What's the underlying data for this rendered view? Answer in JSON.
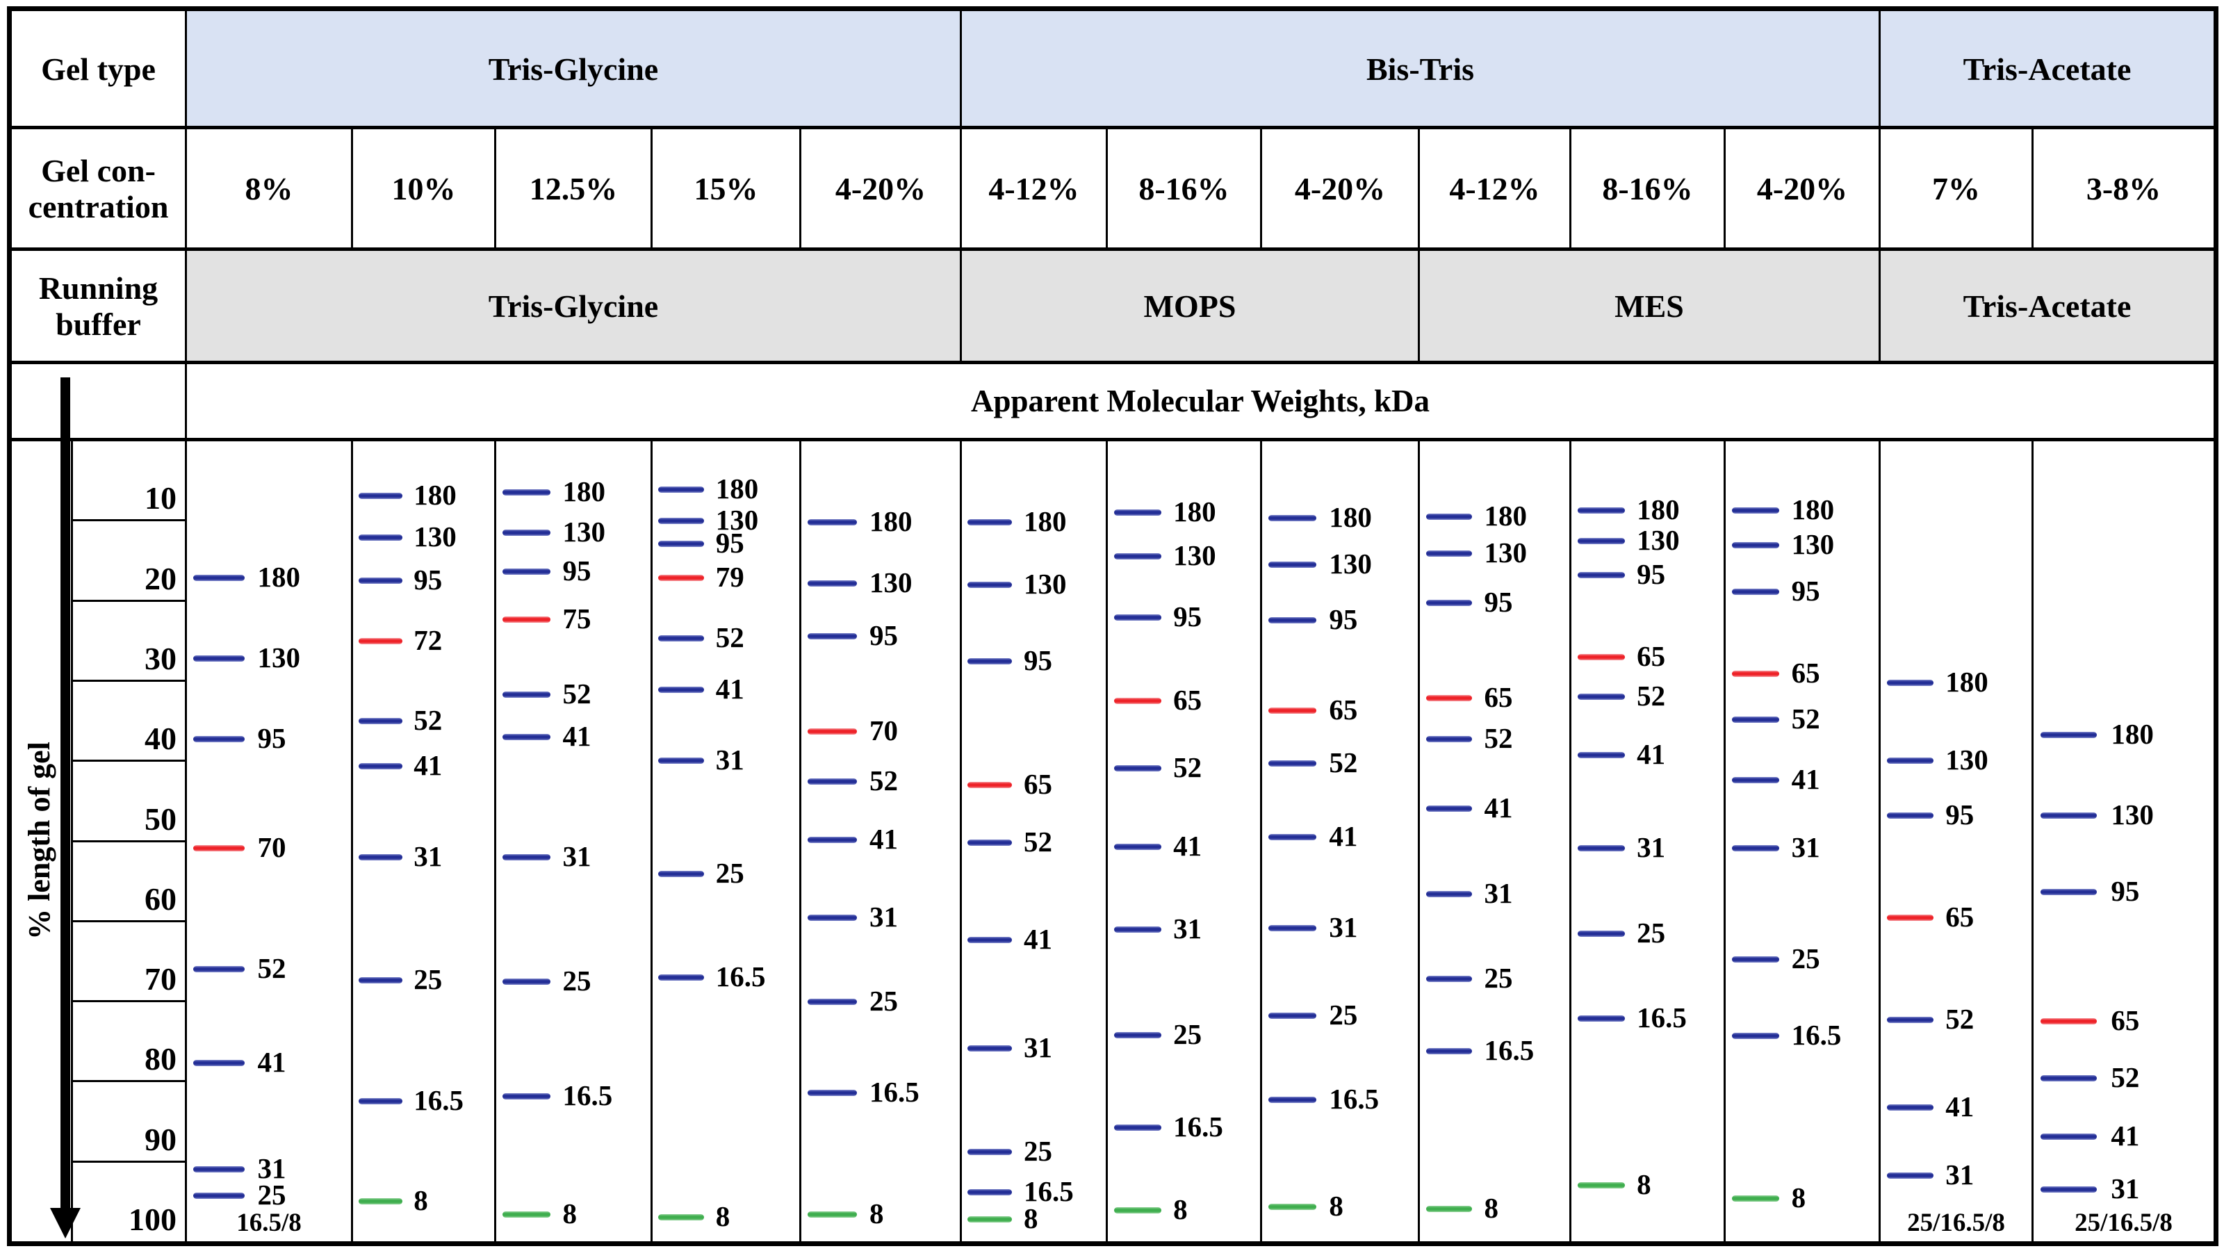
{
  "header": {
    "gel_type_label": "Gel type",
    "gel_concentration_label": "Gel con-\ncentration",
    "running_buffer_label": "Running\nbuffer",
    "gel_type_groups": [
      {
        "label": "Tris-Glycine",
        "span": 5
      },
      {
        "label": "Bis-Tris",
        "span": 6
      },
      {
        "label": "Tris-Acetate",
        "span": 2
      }
    ],
    "concentrations": [
      "8%",
      "10%",
      "12.5%",
      "15%",
      "4-20%",
      "4-12%",
      "8-16%",
      "4-20%",
      "4-12%",
      "8-16%",
      "4-20%",
      "7%",
      "3-8%"
    ],
    "running_buffer_groups": [
      {
        "label": "Tris-Glycine",
        "span": 5
      },
      {
        "label": "MOPS",
        "span": 3
      },
      {
        "label": "MES",
        "span": 3
      },
      {
        "label": "Tris-Acetate",
        "span": 2
      }
    ]
  },
  "mw_title": "Apparent Molecular Weights, kDa",
  "y_axis": {
    "label": "% length of gel",
    "ticks": [
      "10",
      "20",
      "30",
      "40",
      "50",
      "60",
      "70",
      "80",
      "90",
      "100"
    ]
  },
  "colors": {
    "blue": "#232e96",
    "blue_edge": "#8089cc",
    "red": "#ee2228",
    "red_edge": "#f59aa0",
    "green": "#3fae4e",
    "green_edge": "#95d49c",
    "header_blue": "#d9e2f3",
    "buffer_gray": "#e2e2e2",
    "border": "#000000"
  },
  "chart_data": {
    "type": "table",
    "subtype": "protein-ladder-gel-migration",
    "y_unit": "% length of gel",
    "y_range": [
      0,
      100
    ],
    "band_value_unit": "kDa",
    "lanes": [
      {
        "gel_type": "Tris-Glycine",
        "concentration": "8%",
        "running_buffer": "Tris-Glycine",
        "bottom_label": "16.5/8",
        "bands": [
          {
            "kda": 180,
            "pct": 17.2,
            "color": "blue"
          },
          {
            "kda": 130,
            "pct": 27.2,
            "color": "blue"
          },
          {
            "kda": 95,
            "pct": 37.3,
            "color": "blue"
          },
          {
            "kda": 70,
            "pct": 50.9,
            "color": "red"
          },
          {
            "kda": 52,
            "pct": 66.0,
            "color": "blue"
          },
          {
            "kda": 41,
            "pct": 77.7,
            "color": "blue"
          },
          {
            "kda": 31,
            "pct": 91.0,
            "color": "blue"
          },
          {
            "kda": 25,
            "pct": 94.3,
            "color": "blue"
          }
        ]
      },
      {
        "gel_type": "Tris-Glycine",
        "concentration": "10%",
        "running_buffer": "Tris-Glycine",
        "bands": [
          {
            "kda": 180,
            "pct": 6.9,
            "color": "blue"
          },
          {
            "kda": 130,
            "pct": 12.1,
            "color": "blue"
          },
          {
            "kda": 95,
            "pct": 17.5,
            "color": "blue"
          },
          {
            "kda": 72,
            "pct": 25.1,
            "color": "red"
          },
          {
            "kda": 52,
            "pct": 35.0,
            "color": "blue"
          },
          {
            "kda": 41,
            "pct": 40.7,
            "color": "blue"
          },
          {
            "kda": 31,
            "pct": 52.0,
            "color": "blue"
          },
          {
            "kda": 25,
            "pct": 67.4,
            "color": "blue"
          },
          {
            "kda": 16.5,
            "pct": 82.5,
            "color": "blue"
          },
          {
            "kda": 8,
            "pct": 95.0,
            "color": "green"
          }
        ]
      },
      {
        "gel_type": "Tris-Glycine",
        "concentration": "12.5%",
        "running_buffer": "Tris-Glycine",
        "bands": [
          {
            "kda": 180,
            "pct": 6.5,
            "color": "blue"
          },
          {
            "kda": 130,
            "pct": 11.5,
            "color": "blue"
          },
          {
            "kda": 95,
            "pct": 16.4,
            "color": "blue"
          },
          {
            "kda": 75,
            "pct": 22.4,
            "color": "red"
          },
          {
            "kda": 52,
            "pct": 31.7,
            "color": "blue"
          },
          {
            "kda": 41,
            "pct": 37.0,
            "color": "blue"
          },
          {
            "kda": 31,
            "pct": 52.0,
            "color": "blue"
          },
          {
            "kda": 25,
            "pct": 67.6,
            "color": "blue"
          },
          {
            "kda": 16.5,
            "pct": 81.9,
            "color": "blue"
          },
          {
            "kda": 8,
            "pct": 96.6,
            "color": "green"
          }
        ]
      },
      {
        "gel_type": "Tris-Glycine",
        "concentration": "15%",
        "running_buffer": "Tris-Glycine",
        "bands": [
          {
            "kda": 180,
            "pct": 6.2,
            "color": "blue"
          },
          {
            "kda": 130,
            "pct": 10.1,
            "color": "blue"
          },
          {
            "kda": 95,
            "pct": 12.9,
            "color": "blue"
          },
          {
            "kda": 79,
            "pct": 17.2,
            "color": "red"
          },
          {
            "kda": 52,
            "pct": 24.7,
            "color": "blue"
          },
          {
            "kda": 41,
            "pct": 31.1,
            "color": "blue"
          },
          {
            "kda": 31,
            "pct": 40.0,
            "color": "blue"
          },
          {
            "kda": 25,
            "pct": 54.1,
            "color": "blue"
          },
          {
            "kda": 16.5,
            "pct": 67.0,
            "color": "blue"
          },
          {
            "kda": 8,
            "pct": 97.0,
            "color": "green"
          }
        ]
      },
      {
        "gel_type": "Tris-Glycine",
        "concentration": "4-20%",
        "running_buffer": "Tris-Glycine",
        "bands": [
          {
            "kda": 180,
            "pct": 10.2,
            "color": "blue"
          },
          {
            "kda": 130,
            "pct": 17.9,
            "color": "blue"
          },
          {
            "kda": 95,
            "pct": 24.5,
            "color": "blue"
          },
          {
            "kda": 70,
            "pct": 36.3,
            "color": "red"
          },
          {
            "kda": 52,
            "pct": 42.6,
            "color": "blue"
          },
          {
            "kda": 41,
            "pct": 49.9,
            "color": "blue"
          },
          {
            "kda": 31,
            "pct": 59.6,
            "color": "blue"
          },
          {
            "kda": 25,
            "pct": 70.1,
            "color": "blue"
          },
          {
            "kda": 16.5,
            "pct": 81.4,
            "color": "blue"
          },
          {
            "kda": 8,
            "pct": 96.6,
            "color": "green"
          }
        ]
      },
      {
        "gel_type": "Bis-Tris",
        "concentration": "4-12%",
        "running_buffer": "MOPS",
        "bands": [
          {
            "kda": 180,
            "pct": 10.2,
            "color": "blue"
          },
          {
            "kda": 130,
            "pct": 18.0,
            "color": "blue"
          },
          {
            "kda": 95,
            "pct": 27.6,
            "color": "blue"
          },
          {
            "kda": 65,
            "pct": 43.0,
            "color": "red"
          },
          {
            "kda": 52,
            "pct": 50.2,
            "color": "blue"
          },
          {
            "kda": 41,
            "pct": 62.4,
            "color": "blue"
          },
          {
            "kda": 31,
            "pct": 75.9,
            "color": "blue"
          },
          {
            "kda": 25,
            "pct": 88.8,
            "color": "blue"
          },
          {
            "kda": 16.5,
            "pct": 93.8,
            "color": "blue"
          },
          {
            "kda": 8,
            "pct": 97.2,
            "color": "green"
          }
        ]
      },
      {
        "gel_type": "Bis-Tris",
        "concentration": "8-16%",
        "running_buffer": "MOPS",
        "bands": [
          {
            "kda": 180,
            "pct": 9.0,
            "color": "blue"
          },
          {
            "kda": 130,
            "pct": 14.5,
            "color": "blue"
          },
          {
            "kda": 95,
            "pct": 22.1,
            "color": "blue"
          },
          {
            "kda": 65,
            "pct": 32.5,
            "color": "red"
          },
          {
            "kda": 52,
            "pct": 40.9,
            "color": "blue"
          },
          {
            "kda": 41,
            "pct": 50.7,
            "color": "blue"
          },
          {
            "kda": 31,
            "pct": 61.1,
            "color": "blue"
          },
          {
            "kda": 25,
            "pct": 74.2,
            "color": "blue"
          },
          {
            "kda": 16.5,
            "pct": 85.8,
            "color": "blue"
          },
          {
            "kda": 8,
            "pct": 96.1,
            "color": "green"
          }
        ]
      },
      {
        "gel_type": "Bis-Tris",
        "concentration": "4-20%",
        "running_buffer": "MOPS",
        "bands": [
          {
            "kda": 180,
            "pct": 9.7,
            "color": "blue"
          },
          {
            "kda": 130,
            "pct": 15.5,
            "color": "blue"
          },
          {
            "kda": 95,
            "pct": 22.5,
            "color": "blue"
          },
          {
            "kda": 65,
            "pct": 33.7,
            "color": "red"
          },
          {
            "kda": 52,
            "pct": 40.3,
            "color": "blue"
          },
          {
            "kda": 41,
            "pct": 49.5,
            "color": "blue"
          },
          {
            "kda": 31,
            "pct": 60.9,
            "color": "blue"
          },
          {
            "kda": 25,
            "pct": 71.8,
            "color": "blue"
          },
          {
            "kda": 16.5,
            "pct": 82.3,
            "color": "blue"
          },
          {
            "kda": 8,
            "pct": 95.7,
            "color": "green"
          }
        ]
      },
      {
        "gel_type": "Bis-Tris",
        "concentration": "4-12%",
        "running_buffer": "MES",
        "bands": [
          {
            "kda": 180,
            "pct": 9.5,
            "color": "blue"
          },
          {
            "kda": 130,
            "pct": 14.1,
            "color": "blue"
          },
          {
            "kda": 95,
            "pct": 20.3,
            "color": "blue"
          },
          {
            "kda": 65,
            "pct": 32.2,
            "color": "red"
          },
          {
            "kda": 52,
            "pct": 37.3,
            "color": "blue"
          },
          {
            "kda": 41,
            "pct": 46.0,
            "color": "blue"
          },
          {
            "kda": 31,
            "pct": 56.6,
            "color": "blue"
          },
          {
            "kda": 25,
            "pct": 67.2,
            "color": "blue"
          },
          {
            "kda": 16.5,
            "pct": 76.2,
            "color": "blue"
          },
          {
            "kda": 8,
            "pct": 95.9,
            "color": "green"
          }
        ]
      },
      {
        "gel_type": "Bis-Tris",
        "concentration": "8-16%",
        "running_buffer": "MES",
        "bands": [
          {
            "kda": 180,
            "pct": 8.8,
            "color": "blue"
          },
          {
            "kda": 130,
            "pct": 12.6,
            "color": "blue"
          },
          {
            "kda": 95,
            "pct": 16.8,
            "color": "blue"
          },
          {
            "kda": 65,
            "pct": 27.1,
            "color": "red"
          },
          {
            "kda": 52,
            "pct": 32.0,
            "color": "blue"
          },
          {
            "kda": 41,
            "pct": 39.3,
            "color": "blue"
          },
          {
            "kda": 31,
            "pct": 50.9,
            "color": "blue"
          },
          {
            "kda": 25,
            "pct": 61.6,
            "color": "blue"
          },
          {
            "kda": 16.5,
            "pct": 72.2,
            "color": "blue"
          },
          {
            "kda": 8,
            "pct": 93.0,
            "color": "green"
          }
        ]
      },
      {
        "gel_type": "Bis-Tris",
        "concentration": "4-20%",
        "running_buffer": "MES",
        "bands": [
          {
            "kda": 180,
            "pct": 8.8,
            "color": "blue"
          },
          {
            "kda": 130,
            "pct": 13.1,
            "color": "blue"
          },
          {
            "kda": 95,
            "pct": 18.9,
            "color": "blue"
          },
          {
            "kda": 65,
            "pct": 29.1,
            "color": "red"
          },
          {
            "kda": 52,
            "pct": 34.9,
            "color": "blue"
          },
          {
            "kda": 41,
            "pct": 42.4,
            "color": "blue"
          },
          {
            "kda": 31,
            "pct": 50.9,
            "color": "blue"
          },
          {
            "kda": 25,
            "pct": 64.8,
            "color": "blue"
          },
          {
            "kda": 16.5,
            "pct": 74.3,
            "color": "blue"
          },
          {
            "kda": 8,
            "pct": 94.6,
            "color": "green"
          }
        ]
      },
      {
        "gel_type": "Tris-Acetate",
        "concentration": "7%",
        "running_buffer": "Tris-Acetate",
        "bottom_label": "25/16.5/8",
        "bands": [
          {
            "kda": 180,
            "pct": 30.3,
            "color": "blue"
          },
          {
            "kda": 130,
            "pct": 40.0,
            "color": "blue"
          },
          {
            "kda": 95,
            "pct": 46.8,
            "color": "blue"
          },
          {
            "kda": 65,
            "pct": 59.6,
            "color": "red"
          },
          {
            "kda": 52,
            "pct": 72.3,
            "color": "blue"
          },
          {
            "kda": 41,
            "pct": 83.3,
            "color": "blue"
          },
          {
            "kda": 31,
            "pct": 91.8,
            "color": "blue"
          }
        ]
      },
      {
        "gel_type": "Tris-Acetate",
        "concentration": "3-8%",
        "running_buffer": "Tris-Acetate",
        "bottom_label": "25/16.5/8",
        "bands": [
          {
            "kda": 180,
            "pct": 36.8,
            "color": "blue"
          },
          {
            "kda": 130,
            "pct": 46.8,
            "color": "blue"
          },
          {
            "kda": 95,
            "pct": 56.4,
            "color": "blue"
          },
          {
            "kda": 65,
            "pct": 72.5,
            "color": "red"
          },
          {
            "kda": 52,
            "pct": 79.6,
            "color": "blue"
          },
          {
            "kda": 41,
            "pct": 86.9,
            "color": "blue"
          },
          {
            "kda": 31,
            "pct": 93.5,
            "color": "blue"
          }
        ]
      }
    ]
  }
}
